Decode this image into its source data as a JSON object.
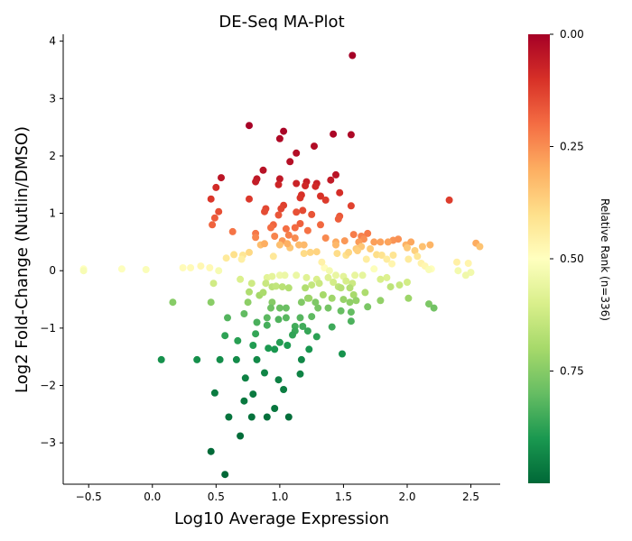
{
  "chart_data": {
    "type": "scatter",
    "title": "DE-Seq MA-Plot",
    "xlabel": "Log10 Average Expression",
    "ylabel": "Log2 Fold-Change (Nutlin/DMSO)",
    "xlim": [
      -0.7,
      2.73
    ],
    "ylim": [
      -3.72,
      4.12
    ],
    "xticks": [
      -0.5,
      0.0,
      0.5,
      1.0,
      1.5,
      2.0,
      2.5
    ],
    "xtick_labels": [
      "−0.5",
      "0.0",
      "0.5",
      "1.0",
      "1.5",
      "2.0",
      "2.5"
    ],
    "yticks": [
      -3,
      -2,
      -1,
      0,
      1,
      2,
      3,
      4
    ],
    "ytick_labels": [
      "−3",
      "−2",
      "−1",
      "0",
      "1",
      "2",
      "3",
      "4"
    ],
    "grid": false,
    "colorbar": {
      "label": "Relative Rank (n=336)",
      "colormap": "RdYlGn",
      "ticks": [
        0.0,
        0.25,
        0.5,
        0.75
      ],
      "tick_labels": [
        "0.00",
        "0.25",
        "0.50",
        "0.75"
      ],
      "range": [
        0,
        1
      ],
      "colors": [
        "#a50026",
        "#d73027",
        "#f46d43",
        "#fdae61",
        "#fee08b",
        "#ffffbf",
        "#d9ef8b",
        "#a6d96a",
        "#66bd63",
        "#1a9850",
        "#006837"
      ]
    },
    "points": [
      [
        1.57,
        3.75
      ],
      [
        0.76,
        2.53
      ],
      [
        1.03,
        2.43
      ],
      [
        1.0,
        2.3
      ],
      [
        1.42,
        2.38
      ],
      [
        1.56,
        2.37
      ],
      [
        1.27,
        2.17
      ],
      [
        1.13,
        2.05
      ],
      [
        1.08,
        1.9
      ],
      [
        0.87,
        1.75
      ],
      [
        0.82,
        1.6
      ],
      [
        1.44,
        1.67
      ],
      [
        0.54,
        1.62
      ],
      [
        0.81,
        1.55
      ],
      [
        1.0,
        1.6
      ],
      [
        0.99,
        1.5
      ],
      [
        1.21,
        1.55
      ],
      [
        1.29,
        1.52
      ],
      [
        1.13,
        1.52
      ],
      [
        1.4,
        1.58
      ],
      [
        1.2,
        1.48
      ],
      [
        1.28,
        1.47
      ],
      [
        0.5,
        1.45
      ],
      [
        1.47,
        1.36
      ],
      [
        1.17,
        1.32
      ],
      [
        1.32,
        1.3
      ],
      [
        1.16,
        1.27
      ],
      [
        0.46,
        1.25
      ],
      [
        0.76,
        1.25
      ],
      [
        1.36,
        1.23
      ],
      [
        1.56,
        1.13
      ],
      [
        1.03,
        1.14
      ],
      [
        1.01,
        1.08
      ],
      [
        0.89,
        1.08
      ],
      [
        0.88,
        1.03
      ],
      [
        1.18,
        1.05
      ],
      [
        0.52,
        1.03
      ],
      [
        1.13,
        1.02
      ],
      [
        1.25,
        0.98
      ],
      [
        0.99,
        0.97
      ],
      [
        0.49,
        0.92
      ],
      [
        1.47,
        0.95
      ],
      [
        1.46,
        0.9
      ],
      [
        0.47,
        0.8
      ],
      [
        0.95,
        0.8
      ],
      [
        1.16,
        0.82
      ],
      [
        1.12,
        0.75
      ],
      [
        0.93,
        0.75
      ],
      [
        1.32,
        0.8
      ],
      [
        1.22,
        0.7
      ],
      [
        1.05,
        0.73
      ],
      [
        0.63,
        0.68
      ],
      [
        0.81,
        0.65
      ],
      [
        1.69,
        0.65
      ],
      [
        0.81,
        0.58
      ],
      [
        1.58,
        0.63
      ],
      [
        1.64,
        0.6
      ],
      [
        1.66,
        0.55
      ],
      [
        1.62,
        0.5
      ],
      [
        1.74,
        0.5
      ],
      [
        1.89,
        0.53
      ],
      [
        1.93,
        0.55
      ],
      [
        1.79,
        0.5
      ],
      [
        1.85,
        0.5
      ],
      [
        1.99,
        0.45
      ],
      [
        2.03,
        0.5
      ],
      [
        2.12,
        0.42
      ],
      [
        2.18,
        0.45
      ],
      [
        2.33,
        1.23
      ],
      [
        2.54,
        0.48
      ],
      [
        2.57,
        0.42
      ],
      [
        1.36,
        0.57
      ],
      [
        1.44,
        0.5
      ],
      [
        1.51,
        0.52
      ],
      [
        1.44,
        0.45
      ],
      [
        1.6,
        0.38
      ],
      [
        1.64,
        0.42
      ],
      [
        1.07,
        0.62
      ],
      [
        0.96,
        0.6
      ],
      [
        1.12,
        0.57
      ],
      [
        1.02,
        0.52
      ],
      [
        1.19,
        0.45
      ],
      [
        1.29,
        0.33
      ],
      [
        1.24,
        0.32
      ],
      [
        1.19,
        0.3
      ],
      [
        1.08,
        0.4
      ],
      [
        1.15,
        0.45
      ],
      [
        1.45,
        0.3
      ],
      [
        1.52,
        0.27
      ],
      [
        1.54,
        0.32
      ],
      [
        1.61,
        0.35
      ],
      [
        1.71,
        0.38
      ],
      [
        1.76,
        0.28
      ],
      [
        1.8,
        0.27
      ],
      [
        1.89,
        0.27
      ],
      [
        2.0,
        0.4
      ],
      [
        2.06,
        0.35
      ],
      [
        2.08,
        0.25
      ],
      [
        2.01,
        0.2
      ],
      [
        2.11,
        0.13
      ],
      [
        2.14,
        0.08
      ],
      [
        2.19,
        0.03
      ],
      [
        2.39,
        0.15
      ],
      [
        2.48,
        0.13
      ],
      [
        1.84,
        0.2
      ],
      [
        1.88,
        0.12
      ],
      [
        1.68,
        0.2
      ],
      [
        0.58,
        0.22
      ],
      [
        0.64,
        0.28
      ],
      [
        0.76,
        0.32
      ],
      [
        0.71,
        0.27
      ],
      [
        0.85,
        0.45
      ],
      [
        0.88,
        0.47
      ],
      [
        1.0,
        0.45
      ],
      [
        1.06,
        0.47
      ],
      [
        0.7,
        0.2
      ],
      [
        0.95,
        0.25
      ],
      [
        0.45,
        0.05
      ],
      [
        0.38,
        0.08
      ],
      [
        0.3,
        0.05
      ],
      [
        0.24,
        0.05
      ],
      [
        -0.54,
        0.03
      ],
      [
        -0.54,
        0.0
      ],
      [
        -0.24,
        0.03
      ],
      [
        -0.05,
        0.02
      ],
      [
        0.52,
        0.0
      ],
      [
        1.35,
        0.05
      ],
      [
        1.39,
        0.0
      ],
      [
        1.33,
        0.15
      ],
      [
        1.74,
        0.03
      ],
      [
        2.17,
        0.02
      ],
      [
        2.4,
        0.0
      ],
      [
        2.5,
        -0.03
      ],
      [
        2.46,
        -0.08
      ],
      [
        0.69,
        -0.15
      ],
      [
        0.48,
        -0.22
      ],
      [
        0.78,
        -0.22
      ],
      [
        0.9,
        -0.12
      ],
      [
        0.94,
        -0.1
      ],
      [
        1.0,
        -0.08
      ],
      [
        1.04,
        -0.08
      ],
      [
        1.13,
        -0.08
      ],
      [
        1.21,
        -0.12
      ],
      [
        1.29,
        -0.15
      ],
      [
        1.38,
        -0.12
      ],
      [
        1.44,
        -0.08
      ],
      [
        1.5,
        -0.1
      ],
      [
        1.59,
        -0.08
      ],
      [
        1.65,
        -0.08
      ],
      [
        1.42,
        -0.2
      ],
      [
        1.46,
        -0.28
      ],
      [
        1.52,
        -0.18
      ],
      [
        1.57,
        -0.22
      ],
      [
        1.48,
        -0.3
      ],
      [
        1.55,
        -0.3
      ],
      [
        1.58,
        -0.42
      ],
      [
        1.67,
        -0.38
      ],
      [
        1.84,
        -0.12
      ],
      [
        1.87,
        -0.28
      ],
      [
        1.94,
        -0.25
      ],
      [
        2.0,
        -0.2
      ],
      [
        1.79,
        -0.15
      ],
      [
        1.25,
        -0.25
      ],
      [
        1.31,
        -0.22
      ],
      [
        0.89,
        -0.22
      ],
      [
        0.94,
        -0.28
      ],
      [
        0.97,
        -0.27
      ],
      [
        1.02,
        -0.28
      ],
      [
        1.07,
        -0.3
      ],
      [
        1.2,
        -0.3
      ],
      [
        1.23,
        -0.48
      ],
      [
        1.34,
        -0.42
      ],
      [
        1.41,
        -0.48
      ],
      [
        1.5,
        -0.5
      ],
      [
        1.55,
        -0.55
      ],
      [
        1.6,
        -0.52
      ],
      [
        1.3,
        -0.65
      ],
      [
        1.38,
        -0.65
      ],
      [
        1.48,
        -0.7
      ],
      [
        1.56,
        -0.72
      ],
      [
        1.69,
        -0.63
      ],
      [
        1.79,
        -0.52
      ],
      [
        2.01,
        -0.48
      ],
      [
        2.17,
        -0.58
      ],
      [
        2.21,
        -0.65
      ],
      [
        0.76,
        -0.37
      ],
      [
        0.75,
        -0.55
      ],
      [
        0.84,
        -0.43
      ],
      [
        0.87,
        -0.38
      ],
      [
        0.46,
        -0.55
      ],
      [
        0.16,
        -0.55
      ],
      [
        0.94,
        -0.55
      ],
      [
        0.93,
        -0.65
      ],
      [
        1.0,
        -0.65
      ],
      [
        1.05,
        -0.65
      ],
      [
        1.17,
        -0.55
      ],
      [
        1.22,
        -0.48
      ],
      [
        1.28,
        -0.55
      ],
      [
        0.9,
        -0.82
      ],
      [
        0.99,
        -0.85
      ],
      [
        1.05,
        -0.82
      ],
      [
        1.16,
        -0.82
      ],
      [
        1.25,
        -0.8
      ],
      [
        1.12,
        -0.97
      ],
      [
        1.18,
        -0.97
      ],
      [
        1.12,
        -1.05
      ],
      [
        1.1,
        -1.12
      ],
      [
        1.22,
        -1.05
      ],
      [
        1.29,
        -1.15
      ],
      [
        1.41,
        -0.98
      ],
      [
        1.56,
        -0.88
      ],
      [
        0.82,
        -0.9
      ],
      [
        0.72,
        -0.75
      ],
      [
        0.81,
        -1.1
      ],
      [
        0.9,
        -0.95
      ],
      [
        0.59,
        -0.82
      ],
      [
        0.57,
        -1.13
      ],
      [
        0.67,
        -1.22
      ],
      [
        0.79,
        -1.3
      ],
      [
        0.91,
        -1.35
      ],
      [
        0.96,
        -1.37
      ],
      [
        1.06,
        -1.3
      ],
      [
        1.0,
        -1.25
      ],
      [
        1.23,
        -1.37
      ],
      [
        1.49,
        -1.45
      ],
      [
        0.07,
        -1.55
      ],
      [
        0.35,
        -1.55
      ],
      [
        0.53,
        -1.55
      ],
      [
        0.66,
        -1.55
      ],
      [
        0.82,
        -1.55
      ],
      [
        1.17,
        -1.55
      ],
      [
        0.88,
        -1.78
      ],
      [
        0.99,
        -1.9
      ],
      [
        1.16,
        -1.8
      ],
      [
        0.73,
        -1.87
      ],
      [
        1.03,
        -2.07
      ],
      [
        0.49,
        -2.13
      ],
      [
        0.79,
        -2.15
      ],
      [
        0.72,
        -2.27
      ],
      [
        0.96,
        -2.4
      ],
      [
        0.6,
        -2.55
      ],
      [
        0.78,
        -2.55
      ],
      [
        0.9,
        -2.55
      ],
      [
        1.07,
        -2.55
      ],
      [
        0.69,
        -2.88
      ],
      [
        0.46,
        -3.15
      ],
      [
        0.57,
        -3.55
      ]
    ]
  }
}
